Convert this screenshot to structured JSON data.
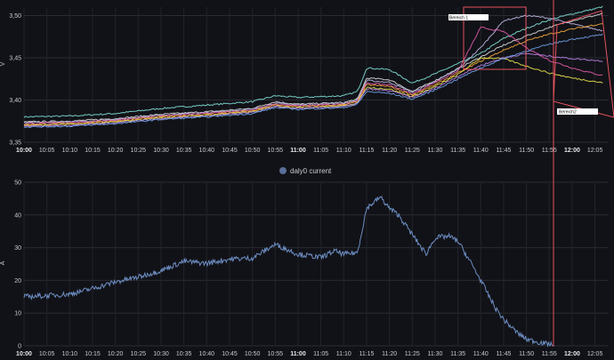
{
  "charts": {
    "voltage": {
      "ylabel": "V",
      "yticks": [
        "3,35",
        "3,40",
        "3,45",
        "3,50"
      ],
      "annotations": [
        "Bereich 1",
        "Bereich2"
      ]
    },
    "current": {
      "ylabel": "A",
      "legend": "daly0 current",
      "yticks": [
        "0",
        "10",
        "20",
        "30",
        "40",
        "50"
      ]
    },
    "xticks": [
      "10:00",
      "10:05",
      "10:10",
      "10:15",
      "10:20",
      "10:25",
      "10:30",
      "10:35",
      "10:40",
      "10:45",
      "10:50",
      "10:55",
      "11:00",
      "11:05",
      "11:10",
      "11:15",
      "11:20",
      "11:25",
      "11:30",
      "11:35",
      "11:40",
      "11:45",
      "11:50",
      "11:55",
      "12:00",
      "12:05"
    ]
  },
  "chart_data": [
    {
      "type": "line",
      "ylabel": "V",
      "ylim": [
        3.35,
        3.51
      ],
      "x": [
        "10:00",
        "10:10",
        "10:20",
        "10:30",
        "10:40",
        "10:50",
        "10:55",
        "11:00",
        "11:10",
        "11:13",
        "11:15",
        "11:20",
        "11:25",
        "11:30",
        "11:35",
        "11:40",
        "11:45",
        "11:50",
        "11:55",
        "12:00",
        "12:05",
        "12:07"
      ],
      "series": [
        {
          "values": [
            3.38,
            3.381,
            3.384,
            3.39,
            3.394,
            3.398,
            3.405,
            3.403,
            3.405,
            3.41,
            3.438,
            3.436,
            3.42,
            3.431,
            3.443,
            3.455,
            3.473,
            3.485,
            3.495,
            3.502,
            3.508,
            3.511
          ]
        },
        {
          "values": [
            3.374,
            3.375,
            3.378,
            3.383,
            3.386,
            3.39,
            3.398,
            3.395,
            3.397,
            3.401,
            3.426,
            3.424,
            3.41,
            3.423,
            3.437,
            3.451,
            3.465,
            3.476,
            3.486,
            3.494,
            3.5,
            3.503
          ]
        },
        {
          "values": [
            3.373,
            3.374,
            3.377,
            3.382,
            3.385,
            3.389,
            3.396,
            3.394,
            3.396,
            3.4,
            3.423,
            3.421,
            3.409,
            3.422,
            3.436,
            3.462,
            3.494,
            3.5,
            3.497,
            3.49,
            3.484,
            3.482
          ]
        },
        {
          "values": [
            3.372,
            3.373,
            3.376,
            3.381,
            3.384,
            3.388,
            3.395,
            3.393,
            3.395,
            3.399,
            3.42,
            3.418,
            3.407,
            3.421,
            3.434,
            3.486,
            3.481,
            3.462,
            3.447,
            3.438,
            3.431,
            3.429
          ]
        },
        {
          "values": [
            3.371,
            3.372,
            3.375,
            3.38,
            3.383,
            3.387,
            3.394,
            3.392,
            3.394,
            3.398,
            3.418,
            3.416,
            3.406,
            3.418,
            3.432,
            3.446,
            3.459,
            3.47,
            3.478,
            3.484,
            3.489,
            3.491
          ]
        },
        {
          "values": [
            3.37,
            3.371,
            3.374,
            3.379,
            3.382,
            3.386,
            3.393,
            3.391,
            3.393,
            3.397,
            3.415,
            3.413,
            3.404,
            3.416,
            3.43,
            3.45,
            3.449,
            3.44,
            3.432,
            3.426,
            3.422,
            3.42
          ]
        },
        {
          "values": [
            3.369,
            3.37,
            3.373,
            3.378,
            3.381,
            3.385,
            3.392,
            3.39,
            3.392,
            3.396,
            3.413,
            3.411,
            3.403,
            3.414,
            3.428,
            3.441,
            3.45,
            3.455,
            3.452,
            3.449,
            3.447,
            3.446
          ]
        },
        {
          "values": [
            3.368,
            3.369,
            3.372,
            3.377,
            3.38,
            3.384,
            3.391,
            3.389,
            3.391,
            3.395,
            3.41,
            3.408,
            3.401,
            3.412,
            3.425,
            3.438,
            3.449,
            3.458,
            3.466,
            3.472,
            3.476,
            3.478
          ]
        }
      ]
    },
    {
      "type": "line",
      "ylabel": "A",
      "ylim": [
        0,
        50
      ],
      "x": [
        "10:00",
        "10:05",
        "10:10",
        "10:15",
        "10:20",
        "10:25",
        "10:30",
        "10:35",
        "10:40",
        "10:45",
        "10:50",
        "10:55",
        "11:00",
        "11:05",
        "11:08",
        "11:10",
        "11:13",
        "11:15",
        "11:18",
        "11:20",
        "11:22",
        "11:25",
        "11:28",
        "11:30",
        "11:33",
        "11:35",
        "11:38",
        "11:40",
        "11:43",
        "11:45",
        "11:48",
        "11:50",
        "11:53",
        "11:55",
        "11:56"
      ],
      "series": [
        {
          "name": "daly0 current",
          "values": [
            15,
            15.3,
            15.8,
            17.5,
            19.5,
            21,
            23,
            25.8,
            25.2,
            26.5,
            26.8,
            31,
            28,
            27,
            29,
            28,
            28.5,
            42,
            45.5,
            42,
            40,
            34,
            28,
            33,
            33.5,
            32,
            25,
            20,
            12,
            8,
            4,
            2,
            1,
            0.5,
            0
          ]
        }
      ]
    }
  ]
}
